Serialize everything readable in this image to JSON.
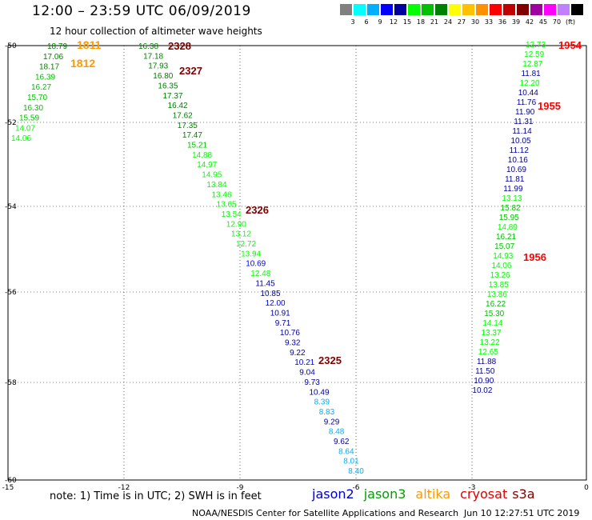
{
  "header": {
    "title": "12:00 – 23:59 UTC 06/09/2019",
    "subtitle": "12 hour collection of altimeter wave heights"
  },
  "legend": {
    "colors": [
      "#808080",
      "#00ffff",
      "#00b0ff",
      "#0000ff",
      "#0000a0",
      "#00ff00",
      "#00c000",
      "#008000",
      "#ffff00",
      "#ffc000",
      "#ff9000",
      "#ff0000",
      "#c00000",
      "#800000",
      "#a000a0",
      "#ff00ff",
      "#c080ff",
      "#000000"
    ],
    "labels": [
      "3",
      "6",
      "9",
      "12",
      "15",
      "18",
      "21",
      "24",
      "27",
      "30",
      "33",
      "36",
      "39",
      "42",
      "45",
      "70",
      "(ft)"
    ]
  },
  "axes": {
    "x_ticks": [
      "-15",
      "-12",
      "-9",
      "-6",
      "-3",
      "0"
    ],
    "y_ticks": [
      "-50",
      "-52",
      "-54",
      "-56",
      "-58",
      "-60"
    ]
  },
  "passes": [
    {
      "id": "1811",
      "color": "#ff9900"
    },
    {
      "id": "1812",
      "color": "#ff9900"
    },
    {
      "id": "2328",
      "color": "#800000"
    },
    {
      "id": "2327",
      "color": "#800000"
    },
    {
      "id": "2326",
      "color": "#800000"
    },
    {
      "id": "2325",
      "color": "#800000"
    },
    {
      "id": "1954",
      "color": "#ff0000"
    },
    {
      "id": "1955",
      "color": "#ff0000"
    },
    {
      "id": "1956",
      "color": "#ff0000"
    }
  ],
  "tracks": {
    "track_a": {
      "values": [
        "18.79",
        "17.06",
        "18.17",
        "16.39",
        "16.27",
        "15.70",
        "16.30",
        "15.59",
        "14.07",
        "14.06"
      ],
      "colors": [
        "#008000",
        "#008000",
        "#008000",
        "#00c000",
        "#00c000",
        "#00c000",
        "#00c000",
        "#00c000",
        "#00ff00",
        "#00ff00"
      ]
    },
    "track_b": {
      "values": [
        "16.38",
        "17.18",
        "17.93",
        "16.80",
        "16.35",
        "17.37",
        "16.42",
        "17.62",
        "17.35",
        "17.47",
        "15.21",
        "14.88",
        "14.97",
        "14.95",
        "13.84",
        "13.46",
        "13.65",
        "13.54",
        "12.90",
        "13.12",
        "12.72",
        "13.94",
        "10.69",
        "12.48",
        "11.45",
        "10.85",
        "12.00",
        "10.91",
        "9.71",
        "10.76",
        "9.32",
        "9.22",
        "10.21",
        "9.04",
        "9.73",
        "10.49",
        "8.39",
        "8.83",
        "9.29",
        "8.48",
        "9.62",
        "8.64",
        "8.01",
        "8.40"
      ],
      "colors": [
        "#008000",
        "#008000",
        "#008000",
        "#008000",
        "#008000",
        "#008000",
        "#008000",
        "#008000",
        "#008000",
        "#008000",
        "#00c000",
        "#00ff00",
        "#00ff00",
        "#00ff00",
        "#00ff00",
        "#00ff00",
        "#00ff00",
        "#00ff00",
        "#00ff00",
        "#00ff00",
        "#00ff00",
        "#00ff00",
        "#0000ff",
        "#00ff00",
        "#0000a0",
        "#0000a0",
        "#0000ff",
        "#0000a0",
        "#0000a0",
        "#0000a0",
        "#0000a0",
        "#0000a0",
        "#0000ff",
        "#0000a0",
        "#0000a0",
        "#0000a0",
        "#00b0ff",
        "#00b0ff",
        "#0000a0",
        "#00b0ff",
        "#0000a0",
        "#00b0ff",
        "#00b0ff",
        "#00b0ff"
      ]
    },
    "track_c": {
      "values": [
        "12.73",
        "12.59",
        "12.87",
        "11.81",
        "12.20",
        "10.44",
        "11.76",
        "11.90",
        "11.31",
        "11.14",
        "10.05",
        "11.12",
        "10.16",
        "10.69",
        "11.81",
        "11.99",
        "13.13",
        "15.82",
        "15.95",
        "14.89",
        "16.21",
        "15.07",
        "14.93",
        "14.06",
        "13.26",
        "13.85",
        "13.86",
        "16.22",
        "15.30",
        "14.14",
        "13.37",
        "13.22",
        "12.65",
        "11.88",
        "11.50",
        "10.90",
        "10.02"
      ],
      "colors": [
        "#00ff00",
        "#00ff00",
        "#00ff00",
        "#0000a0",
        "#00ff00",
        "#0000a0",
        "#0000a0",
        "#0000a0",
        "#0000a0",
        "#0000a0",
        "#0000a0",
        "#0000a0",
        "#0000a0",
        "#0000a0",
        "#0000a0",
        "#0000a0",
        "#00ff00",
        "#00c000",
        "#00c000",
        "#00ff00",
        "#00c000",
        "#00c000",
        "#00ff00",
        "#00ff00",
        "#00ff00",
        "#00ff00",
        "#00ff00",
        "#00c000",
        "#00c000",
        "#00ff00",
        "#00ff00",
        "#00ff00",
        "#00ff00",
        "#0000a0",
        "#0000a0",
        "#0000a0",
        "#0000a0"
      ]
    }
  },
  "note": "note:  1) Time is in UTC; 2) SWH is in feet",
  "satellites": [
    {
      "name": "jason2",
      "color": "#0000cc"
    },
    {
      "name": "jason3",
      "color": "#00a000"
    },
    {
      "name": "altika",
      "color": "#ff9900"
    },
    {
      "name": "cryosat",
      "color": "#e00000"
    },
    {
      "name": "s3a",
      "color": "#800000"
    }
  ],
  "footer": {
    "credit": "NOAA/NESDIS Center for Satellite Applications and Research",
    "timestamp": "Jun 10 12:27:51 UTC 2019"
  }
}
